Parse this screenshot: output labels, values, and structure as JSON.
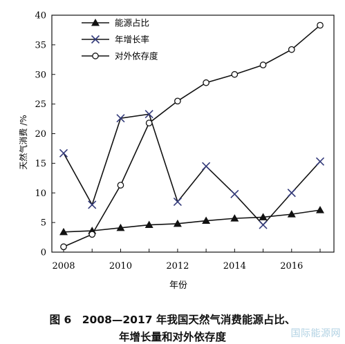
{
  "chart_data": {
    "type": "line",
    "xlabel": "年份",
    "ylabel": "天然气消费 /%",
    "xlim": [
      2008,
      2017
    ],
    "ylim": [
      0,
      40
    ],
    "x_ticks": [
      2008,
      2010,
      2012,
      2014,
      2016
    ],
    "y_ticks": [
      0,
      5,
      10,
      15,
      20,
      25,
      30,
      35,
      40
    ],
    "grid": false,
    "legend_placement": "top-left",
    "x": [
      2008,
      2009,
      2010,
      2011,
      2012,
      2013,
      2014,
      2015,
      2016,
      2017
    ],
    "series": [
      {
        "name": "能源占比",
        "marker": "filled-triangle",
        "values": [
          3.4,
          3.6,
          4.1,
          4.6,
          4.8,
          5.3,
          5.7,
          5.9,
          6.4,
          7.1
        ]
      },
      {
        "name": "年增长率",
        "marker": "x",
        "values": [
          16.7,
          8.0,
          22.6,
          23.3,
          8.5,
          14.5,
          9.8,
          4.6,
          10.0,
          15.3
        ]
      },
      {
        "name": "对外依存度",
        "marker": "open-circle",
        "values": [
          0.9,
          3.0,
          11.3,
          21.8,
          25.5,
          28.6,
          30.0,
          31.6,
          34.2,
          38.3
        ]
      }
    ]
  },
  "caption": {
    "line1": "图 6　2008—2017 年我国天然气消费能源占比、",
    "line2": "年增长量和对外依存度"
  },
  "watermark": "国际能源网"
}
